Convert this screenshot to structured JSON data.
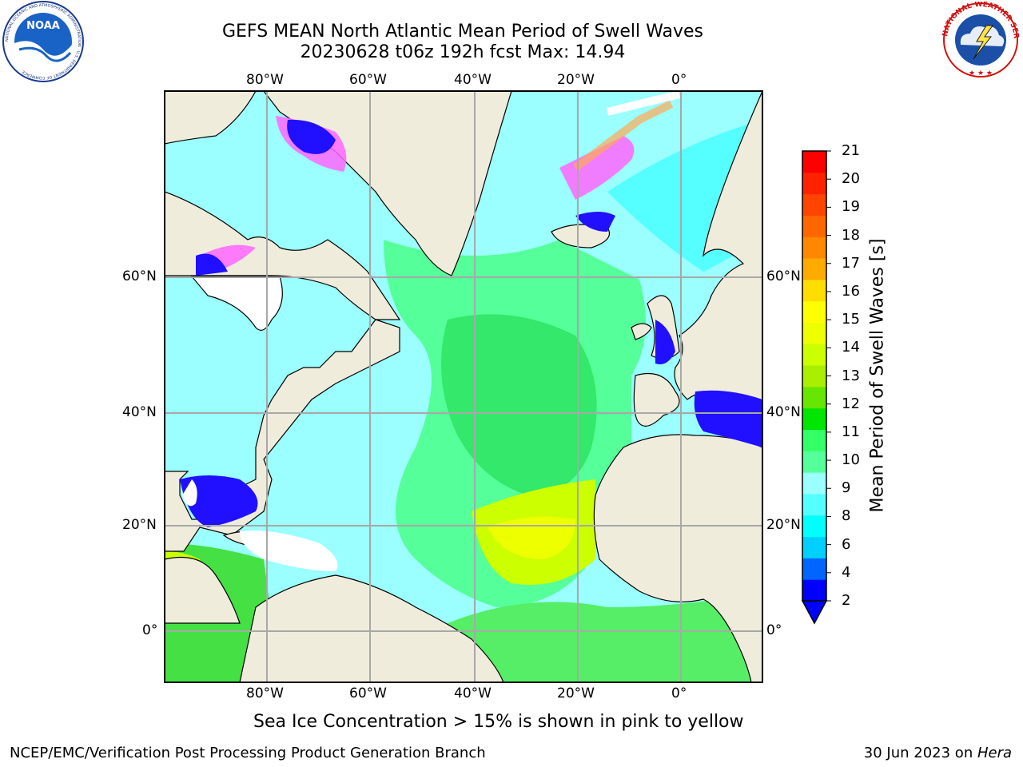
{
  "header": {
    "title_line1": "GEFS MEAN North Atlantic Mean Period of Swell Waves",
    "title_line2": "20230628 t06z 192h fcst   Max: 14.94"
  },
  "map": {
    "longitude_labels": [
      "80°W",
      "60°W",
      "40°W",
      "20°W",
      "0°"
    ],
    "latitude_labels": [
      "60°N",
      "40°N",
      "20°N",
      "0°"
    ],
    "note": "Sea Ice Concentration > 15% is shown in pink to yellow",
    "land_color": "#efecdc",
    "ice_color": "#ff66ff"
  },
  "colorbar": {
    "label": "Mean Period of Swell Waves [s]",
    "ticks": [
      "21",
      "20",
      "19",
      "18",
      "17",
      "16",
      "15",
      "14",
      "13",
      "12",
      "11",
      "10",
      "9",
      "8",
      "6",
      "4",
      "2"
    ],
    "colors": [
      "#0000ff",
      "#0066ff",
      "#00d0ff",
      "#00ffff",
      "#55ffff",
      "#9bffff",
      "#55ff99",
      "#33ff66",
      "#00e600",
      "#66e600",
      "#aaee00",
      "#ccff00",
      "#eeff00",
      "#ffff00",
      "#ffdd00",
      "#ffaa00",
      "#ff8800",
      "#ff6600",
      "#ff4400",
      "#ff2200",
      "#ff0000"
    ]
  },
  "logos": {
    "noaa_text": "NOAA",
    "noaa_ring": "NATIONAL OCEANIC AND ATMOSPHERIC ADMINISTRATION · U.S. DEPARTMENT OF COMMERCE",
    "nws_ring": "NATIONAL WEATHER SERVICE"
  },
  "footer": {
    "left": "NCEP/EMC/Verification Post Processing Product Generation Branch",
    "right_prefix": "30 Jun 2023 on ",
    "right_machine": "Hera"
  }
}
